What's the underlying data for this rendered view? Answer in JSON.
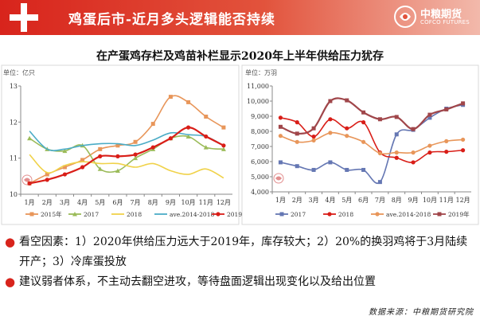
{
  "header": {
    "title": "鸡蛋后市-近月多头逻辑能否持续"
  },
  "brand": {
    "name_cn": "中粮期货",
    "name_en": "COFCO FUTURES"
  },
  "subtitle": "在产蛋鸡存栏及鸡苗补栏显示2020年上半年供给压力犹存",
  "colors": {
    "header": "#d8241c",
    "bullet": "#d8241c"
  },
  "chart_data": [
    {
      "type": "line",
      "unit_label": "单位：亿只",
      "categories": [
        "1月",
        "2月",
        "3月",
        "4月",
        "5月",
        "6月",
        "7月",
        "8月",
        "9月",
        "10月",
        "11月",
        "12月"
      ],
      "ylim": [
        10,
        13
      ],
      "yticks": [
        10,
        11,
        12,
        13
      ],
      "grid": false,
      "legend_position": "bottom",
      "series": [
        {
          "name": "2015年",
          "color": "#e8965a",
          "marker": "square",
          "values": [
            10.3,
            10.55,
            10.75,
            10.95,
            11.25,
            11.35,
            11.45,
            11.95,
            12.7,
            12.55,
            12.15,
            11.85
          ]
        },
        {
          "name": "2017",
          "color": "#9bbb59",
          "marker": "triangle",
          "values": [
            11.55,
            11.25,
            11.2,
            11.35,
            10.7,
            10.65,
            11.0,
            11.25,
            11.55,
            11.6,
            11.3,
            11.25
          ]
        },
        {
          "name": "2018",
          "color": "#f0d24a",
          "marker": "none",
          "values": [
            11.1,
            10.6,
            10.8,
            10.9,
            10.85,
            10.85,
            10.75,
            10.85,
            10.65,
            10.55,
            10.7,
            10.45
          ]
        },
        {
          "name": "ave.2014-2018",
          "color": "#4bacc6",
          "marker": "none",
          "values": [
            11.75,
            11.25,
            11.25,
            11.35,
            11.4,
            11.4,
            11.35,
            11.5,
            11.7,
            11.65,
            11.6,
            11.35
          ]
        },
        {
          "name": "2019年",
          "color": "#d91e18",
          "marker": "circle",
          "values": [
            10.3,
            10.4,
            10.55,
            10.75,
            11.05,
            11.05,
            11.1,
            11.3,
            11.55,
            11.85,
            11.6,
            11.35
          ]
        }
      ]
    },
    {
      "type": "line",
      "unit_label": "单位：万羽",
      "categories": [
        "1月",
        "2月",
        "3月",
        "4月",
        "5月",
        "6月",
        "7月",
        "8月",
        "9月",
        "10月",
        "11月",
        "12月"
      ],
      "ylim": [
        4000,
        11000
      ],
      "yticks": [
        4000,
        5000,
        6000,
        7000,
        8000,
        9000,
        10000,
        11000
      ],
      "grid": false,
      "legend_position": "bottom",
      "series": [
        {
          "name": "2017",
          "color": "#6577b3",
          "marker": "square",
          "values": [
            5950,
            5700,
            5450,
            5950,
            5450,
            5450,
            4650,
            7800,
            8100,
            8900,
            9500,
            9750
          ]
        },
        {
          "name": "2018",
          "color": "#d91e18",
          "marker": "circle",
          "values": [
            8900,
            8600,
            7650,
            8800,
            8200,
            8600,
            6600,
            6250,
            5950,
            6600,
            6650,
            6750
          ]
        },
        {
          "name": "ave.2014-2018",
          "color": "#e8965a",
          "marker": "circle",
          "values": [
            7700,
            7300,
            7400,
            7900,
            7700,
            7300,
            6550,
            6600,
            6600,
            7050,
            7350,
            7450
          ]
        },
        {
          "name": "2019年",
          "color": "#a0464a",
          "marker": "square",
          "values": [
            8300,
            7850,
            8200,
            10000,
            10050,
            9250,
            8800,
            8950,
            8150,
            9100,
            9450,
            9850
          ]
        }
      ]
    }
  ],
  "bullets": [
    "看空因素：1）2020年供给压力远大于2019年，库存较大；2）20%的换羽鸡将于3月陆续开产；3）冷库蛋投放",
    "建议弱者体系，不主动去翻空进攻，等待盘面逻辑出现变化以及给出位置"
  ],
  "source": "数据来源：中粮期货研究院"
}
